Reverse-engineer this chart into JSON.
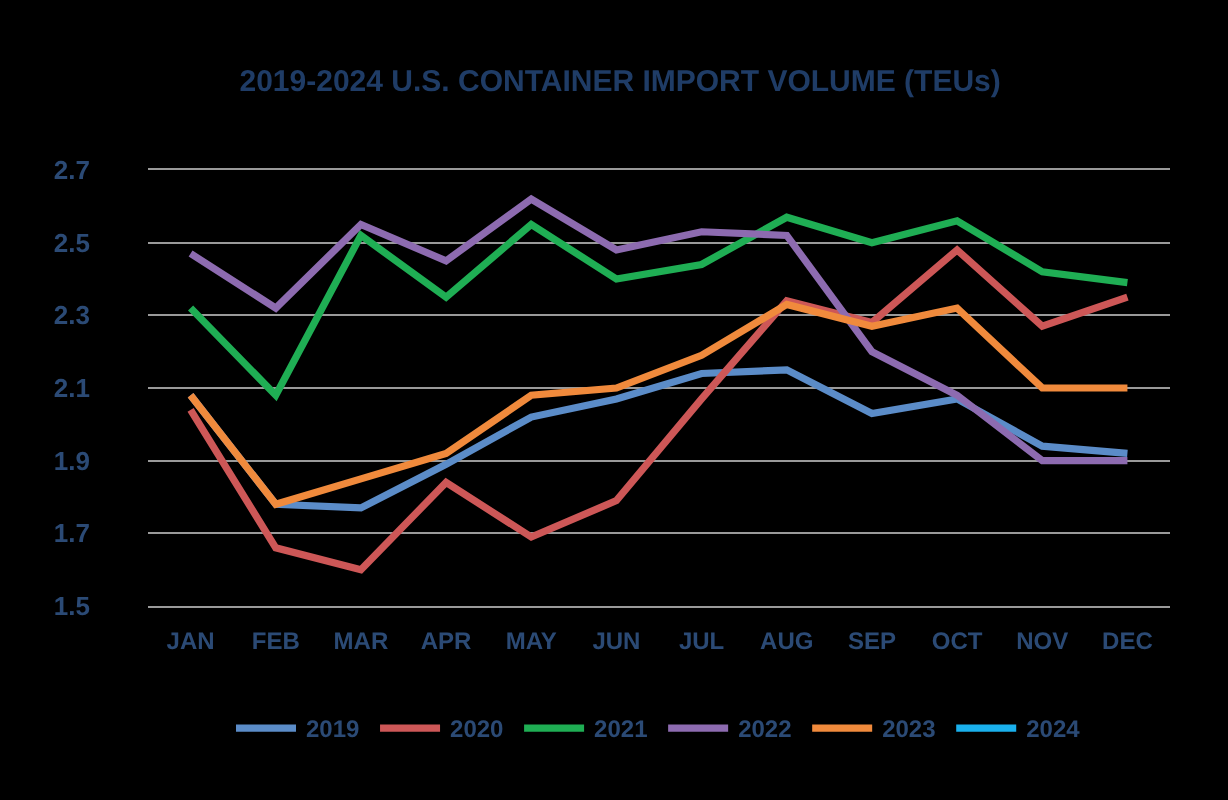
{
  "chart_data": {
    "type": "line",
    "title": "2019-2024 U.S. CONTAINER IMPORT VOLUME (TEUs)",
    "categories": [
      "JAN",
      "FEB",
      "MAR",
      "APR",
      "MAY",
      "JUN",
      "JUL",
      "AUG",
      "SEP",
      "OCT",
      "NOV",
      "DEC"
    ],
    "series": [
      {
        "name": "2019",
        "color": "#5b8cc8",
        "values": [
          2.08,
          1.78,
          1.77,
          1.89,
          2.02,
          2.07,
          2.14,
          2.15,
          2.03,
          2.07,
          1.94,
          1.92
        ]
      },
      {
        "name": "2020",
        "color": "#cd5757",
        "values": [
          2.04,
          1.66,
          1.6,
          1.84,
          1.69,
          1.79,
          2.07,
          2.34,
          2.28,
          2.48,
          2.27,
          2.35
        ]
      },
      {
        "name": "2021",
        "color": "#1fae54",
        "values": [
          2.32,
          2.08,
          2.52,
          2.35,
          2.55,
          2.4,
          2.44,
          2.57,
          2.5,
          2.56,
          2.42,
          2.39
        ]
      },
      {
        "name": "2022",
        "color": "#8d6bb0",
        "values": [
          2.47,
          2.32,
          2.55,
          2.45,
          2.62,
          2.48,
          2.53,
          2.52,
          2.2,
          2.08,
          1.9,
          1.9
        ]
      },
      {
        "name": "2023",
        "color": "#f08a3c",
        "values": [
          2.08,
          1.78,
          1.85,
          1.92,
          2.08,
          2.1,
          2.19,
          2.33,
          2.27,
          2.32,
          2.1,
          2.1
        ]
      },
      {
        "name": "2024",
        "color": "#1ab0ec",
        "values": [
          null,
          null,
          null,
          null,
          null,
          null,
          null,
          null,
          null,
          null,
          null,
          null
        ]
      }
    ],
    "ylim": [
      1.5,
      2.7
    ],
    "yticks": [
      1.5,
      1.7,
      1.9,
      2.1,
      2.3,
      2.5,
      2.7
    ],
    "grid": "y",
    "legend": "bottom"
  }
}
